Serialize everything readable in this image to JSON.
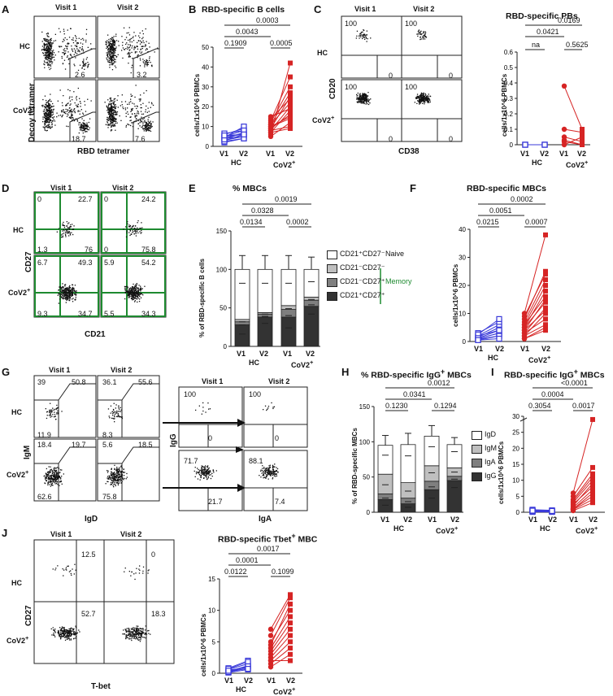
{
  "colors": {
    "hc": "#3a3ad9",
    "cov": "#d62424",
    "green_gate": "#1e8a30",
    "naive": "#ffffff",
    "dn": "#bfbfbf",
    "cd21neg": "#7f7f7f",
    "cd21pos": "#333333"
  },
  "labels": {
    "visit1": "Visit 1",
    "visit2": "Visit 2",
    "hc": "HC",
    "cov": "CoV2",
    "plus": "+",
    "v1": "V1",
    "v2": "V2",
    "cells_axis": "cells/1x10^6 PBMCs"
  },
  "panels": {
    "A": {
      "letter": "A",
      "ylabel": "Decoy tetramer",
      "xlabel": "RBD tetramer",
      "gates": [
        "2.6",
        "3.2",
        "18.7",
        "7.6"
      ]
    },
    "B": {
      "letter": "B",
      "title": "RBD-specific B cells",
      "pvals": [
        "0.0003",
        "0.0043",
        "0.1909",
        "0.0005"
      ]
    },
    "C": {
      "letter": "C",
      "ylabel": "CD20",
      "xlabel": "CD38",
      "gates": [
        "100",
        "0",
        "100",
        "0",
        "100",
        "0",
        "100",
        "0"
      ]
    },
    "C2": {
      "title": "RBD-specific PBs",
      "pvals": [
        "0.0169",
        "0.0421",
        "na",
        "0.5625"
      ]
    },
    "D": {
      "letter": "D",
      "ylabel": "CD27",
      "xlabel": "CD21",
      "gates": [
        [
          "0",
          "22.7",
          "1.3",
          "76"
        ],
        [
          "0",
          "24.2",
          "0",
          "75.8"
        ],
        [
          "6.7",
          "49.3",
          "9.3",
          "34.7"
        ],
        [
          "5.9",
          "54.2",
          "5.5",
          "34.3"
        ]
      ]
    },
    "E": {
      "letter": "E",
      "title": "% MBCs",
      "ylabel": "% of RBD-specific B cells",
      "pvals": [
        "0.0019",
        "0.0328",
        "0.0134",
        "0.0002"
      ],
      "legend": [
        "CD21⁺CD27⁻",
        "CD21⁻CD27⁻",
        "CD21⁻CD27⁺",
        "CD21⁺CD27⁺"
      ],
      "naive": "Naive",
      "memory": "Memory"
    },
    "F": {
      "letter": "F",
      "title": "RBD-specific MBCs",
      "pvals": [
        "0.0002",
        "0.0051",
        "0.0215",
        "0.0007"
      ]
    },
    "G": {
      "letter": "G",
      "ylabel": "IgM",
      "xlabel": "IgD",
      "ylabel2": "IgG",
      "xlabel2": "IgA",
      "gates": [
        [
          "39",
          "50.8",
          "11.9"
        ],
        [
          "36.1",
          "55.6",
          "8.3"
        ],
        [
          "18.4",
          "19.7",
          "62.6"
        ],
        [
          "5.6",
          "18.5",
          "75.8"
        ]
      ],
      "gates2": [
        [
          "100",
          "0"
        ],
        [
          "100",
          "0"
        ],
        [
          "71.7",
          "21.7"
        ],
        [
          "88.1",
          "7.4"
        ]
      ]
    },
    "H": {
      "letter": "H",
      "title": "% RBD-specific IgG",
      "title_end": " MBCs",
      "ylabel": "% of RBD-specific MBCs",
      "pvals": [
        "0.0012",
        "0.0341",
        "0.1230",
        "0.1294"
      ],
      "legend": [
        "IgD",
        "IgM",
        "IgA",
        "IgG"
      ]
    },
    "I": {
      "letter": "I",
      "title": "RBD-specific IgG",
      "title_end": " MBCs",
      "pvals": [
        "<0.0001",
        "0.0004",
        "0.3054",
        "0.0017"
      ]
    },
    "J": {
      "letter": "J",
      "ylabel": "CD27",
      "xlabel": "T-bet",
      "gates": [
        "12.5",
        "0",
        "52.7",
        "18.3"
      ]
    },
    "J2": {
      "title": "RBD-specific Tbet",
      "title_end": " MBC",
      "pvals": [
        "0.0017",
        "0.0001",
        "0.0122",
        "0.1099"
      ]
    }
  },
  "chart_data": [
    {
      "panel": "B",
      "type": "scatter",
      "title": "RBD-specific B cells",
      "ylabel": "cells/1x10^6 PBMCs",
      "ylim": [
        0,
        50
      ],
      "yticks": [
        0,
        10,
        20,
        30,
        40,
        50
      ],
      "categories": [
        "HC V1",
        "HC V2",
        "CoV2+ V1",
        "CoV2+ V2"
      ],
      "series": [
        {
          "name": "HC",
          "v1": [
            2,
            3,
            4,
            4,
            5,
            5,
            6,
            3,
            2.5,
            4.5,
            3.5,
            6.5,
            5.5
          ],
          "v2": [
            4,
            6,
            5,
            7,
            8,
            6,
            9,
            5,
            4,
            10,
            7,
            8,
            6
          ]
        },
        {
          "name": "CoV2+",
          "v1": [
            5,
            7,
            8,
            9,
            10,
            11,
            12,
            13,
            6,
            8,
            9,
            11,
            14,
            15,
            10,
            7
          ],
          "v2": [
            12,
            18,
            20,
            25,
            15,
            22,
            30,
            35,
            42,
            10,
            16,
            27,
            24,
            19,
            14,
            9
          ]
        }
      ]
    },
    {
      "panel": "C2",
      "type": "scatter",
      "title": "RBD-specific PBs",
      "ylabel": "cells/1x10^6 PBMCs",
      "ylim": [
        0,
        0.6
      ],
      "yticks": [
        0,
        0.1,
        0.2,
        0.3,
        0.4,
        0.5,
        0.6
      ],
      "categories": [
        "HC V1",
        "HC V2",
        "CoV2+ V1",
        "CoV2+ V2"
      ],
      "series": [
        {
          "name": "HC",
          "v1": [
            0,
            0,
            0,
            0
          ],
          "v2": [
            0,
            0,
            0,
            0
          ]
        },
        {
          "name": "CoV2+",
          "v1": [
            0.38,
            0.1,
            0.05,
            0.02,
            0,
            0.03
          ],
          "v2": [
            0.1,
            0.08,
            0.02,
            0,
            0.05,
            0
          ]
        }
      ]
    },
    {
      "panel": "E",
      "type": "bar",
      "title": "% MBCs",
      "ylabel": "% of RBD-specific B cells",
      "ylim": [
        0,
        150
      ],
      "yticks": [
        0,
        50,
        100,
        150
      ],
      "categories": [
        "HC V1",
        "HC V2",
        "CoV2+ V1",
        "CoV2+ V2"
      ],
      "series": [
        {
          "name": "CD21⁺CD27⁺",
          "values": [
            28,
            38,
            38,
            52
          ],
          "sd": [
            12,
            8,
            14,
            10
          ]
        },
        {
          "name": "CD21⁻CD27⁺",
          "values": [
            4,
            4,
            10,
            8
          ],
          "sd": [
            4,
            3,
            8,
            6
          ]
        },
        {
          "name": "CD21⁻CD27⁻",
          "values": [
            3,
            2,
            5,
            4
          ],
          "sd": [
            3,
            2,
            4,
            3
          ]
        },
        {
          "name": "CD21⁺CD27⁻",
          "values": [
            65,
            56,
            47,
            36
          ],
          "sd": [
            18,
            18,
            18,
            16
          ]
        }
      ]
    },
    {
      "panel": "F",
      "type": "scatter",
      "title": "RBD-specific MBCs",
      "ylabel": "cells/1x10^6 PBMCs",
      "ylim": [
        0,
        40
      ],
      "yticks": [
        0,
        10,
        20,
        30,
        40
      ],
      "categories": [
        "HC V1",
        "HC V2",
        "CoV2+ V1",
        "CoV2+ V2"
      ],
      "series": [
        {
          "name": "HC",
          "v1": [
            0.5,
            1,
            1.5,
            2,
            2,
            3,
            1,
            0.8,
            2.5,
            1.2,
            0.5
          ],
          "v2": [
            2,
            3,
            5,
            6,
            4,
            7,
            3,
            2,
            8,
            4,
            1
          ]
        },
        {
          "name": "CoV2+",
          "v1": [
            1,
            2,
            3,
            4,
            5,
            6,
            7,
            8,
            10,
            3,
            2,
            5,
            6,
            4,
            9,
            1
          ],
          "v2": [
            5,
            10,
            12,
            15,
            18,
            20,
            22,
            25,
            38,
            8,
            6,
            14,
            16,
            11,
            24,
            4
          ]
        }
      ]
    },
    {
      "panel": "H",
      "type": "bar",
      "title": "% RBD-specific IgG+ MBCs",
      "ylabel": "% of RBD-specific MBCs",
      "ylim": [
        0,
        150
      ],
      "yticks": [
        0,
        50,
        100,
        150
      ],
      "categories": [
        "HC V1",
        "HC V2",
        "CoV2+ V1",
        "CoV2+ V2"
      ],
      "series": [
        {
          "name": "IgG",
          "values": [
            18,
            12,
            32,
            45
          ],
          "sd": [
            8,
            5,
            12,
            10
          ]
        },
        {
          "name": "IgA",
          "values": [
            8,
            8,
            12,
            6
          ],
          "sd": [
            6,
            5,
            8,
            4
          ]
        },
        {
          "name": "IgM",
          "values": [
            28,
            22,
            22,
            12
          ],
          "sd": [
            15,
            12,
            10,
            6
          ]
        },
        {
          "name": "IgD",
          "values": [
            41,
            54,
            42,
            33
          ],
          "sd": [
            14,
            16,
            15,
            10
          ]
        }
      ]
    },
    {
      "panel": "I",
      "type": "scatter",
      "title": "RBD-specific IgG+ MBCs",
      "ylabel": "cells/1x10^6 PBMCs",
      "ylim": [
        0,
        30
      ],
      "yticks": [
        0,
        5,
        10,
        15,
        20,
        25,
        30
      ],
      "categories": [
        "HC V1",
        "HC V2",
        "CoV2+ V1",
        "CoV2+ V2"
      ],
      "series": [
        {
          "name": "HC",
          "v1": [
            0.5,
            0.3,
            0.2,
            0.8,
            0.4,
            0.6,
            0.1,
            0.3,
            0.5
          ],
          "v2": [
            0.3,
            0.5,
            0.2,
            0.6,
            0.4,
            0.3,
            0.1,
            0.2,
            0.4
          ]
        },
        {
          "name": "CoV2+",
          "v1": [
            0.5,
            1,
            1.5,
            2,
            3,
            4,
            5,
            2.5,
            1,
            3.5,
            0.8,
            6
          ],
          "v2": [
            3,
            5,
            7,
            9,
            10,
            12,
            14,
            8,
            6,
            11,
            4,
            29
          ]
        }
      ]
    },
    {
      "panel": "J2",
      "type": "scatter",
      "title": "RBD-specific Tbet+ MBC",
      "ylabel": "cells/1x10^6 PBMCs",
      "ylim": [
        0,
        15
      ],
      "yticks": [
        0,
        5,
        10,
        15
      ],
      "categories": [
        "HC V1",
        "HC V2",
        "CoV2+ V1",
        "CoV2+ V2"
      ],
      "series": [
        {
          "name": "HC",
          "v1": [
            0.2,
            0.4,
            0.6,
            0.8,
            0.3,
            0.5,
            0.1,
            0.7,
            0.2,
            0.4
          ],
          "v2": [
            0.8,
            1,
            1.5,
            2,
            1.2,
            0.9,
            0.6,
            1.8,
            1.1,
            0.7
          ]
        },
        {
          "name": "CoV2+",
          "v1": [
            1,
            2,
            3,
            4,
            5,
            6,
            2.5,
            1.5,
            3.5,
            4.5,
            2,
            7
          ],
          "v2": [
            3,
            5,
            7,
            9,
            10,
            12,
            6,
            4,
            8,
            11,
            2,
            12.5
          ]
        }
      ]
    }
  ]
}
